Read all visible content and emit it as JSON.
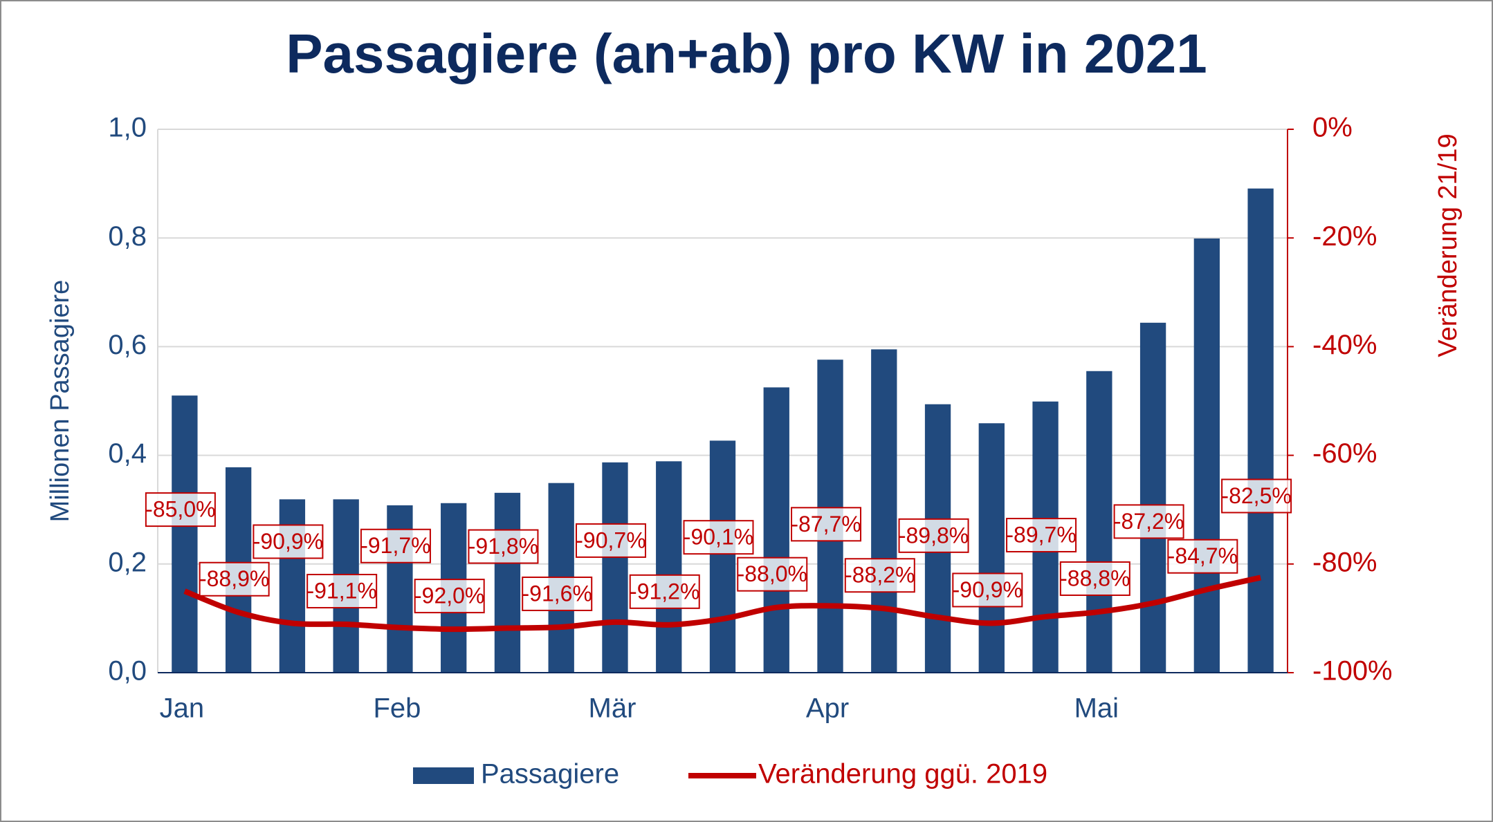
{
  "chart_data": {
    "type": "bar-line",
    "title": "Passagiere (an+ab) pro KW in 2021",
    "y_label": "Millionen Passagiere",
    "y2_label": "Veränderung 21/19",
    "categories": [
      "Jan",
      null,
      null,
      null,
      "Feb",
      null,
      null,
      null,
      "Mär",
      null,
      null,
      null,
      "Apr",
      null,
      null,
      null,
      null,
      "Mai",
      null,
      null,
      null
    ],
    "series": [
      {
        "name": "Passagiere",
        "type": "bar",
        "color": "#214a7e",
        "values": [
          0.51,
          0.378,
          0.319,
          0.319,
          0.308,
          0.312,
          0.331,
          0.349,
          0.387,
          0.389,
          0.427,
          0.525,
          0.576,
          0.595,
          0.494,
          0.459,
          0.499,
          0.555,
          0.644,
          0.799,
          0.891
        ]
      },
      {
        "name": "Veränderung ggü. 2019",
        "type": "line",
        "axis": "y2",
        "color": "#c00000",
        "values": [
          -85.0,
          -88.9,
          -90.9,
          -91.1,
          -91.7,
          -92.0,
          -91.8,
          -91.6,
          -90.7,
          -91.2,
          -90.1,
          -88.0,
          -87.7,
          -88.2,
          -89.8,
          -90.9,
          -89.7,
          -88.8,
          -87.2,
          -84.7,
          -82.5
        ],
        "value_labels": [
          "-85,0%",
          "-88,9%",
          "-90,9%",
          "-91,1%",
          "-91,7%",
          "-92,0%",
          "-91,8%",
          "-91,6%",
          "-90,7%",
          "-91,2%",
          "-90,1%",
          "-88,0%",
          "-87,7%",
          "-88,2%",
          "-89,8%",
          "-90,9%",
          "-89,7%",
          "-88,8%",
          "-87,2%",
          "-84,7%",
          "-82,5%"
        ]
      }
    ],
    "ylim": [
      0,
      1
    ],
    "yticks": [
      {
        "value": 0,
        "label": "0,0"
      },
      {
        "value": 0.2,
        "label": "0,2"
      },
      {
        "value": 0.4,
        "label": "0,4"
      },
      {
        "value": 0.6,
        "label": "0,6"
      },
      {
        "value": 0.8,
        "label": "0,8"
      },
      {
        "value": 1,
        "label": "1,0"
      }
    ],
    "y2lim": [
      -100,
      0
    ],
    "y2ticks": [
      {
        "value": -100,
        "label": "-100%"
      },
      {
        "value": -80,
        "label": "-80%"
      },
      {
        "value": -60,
        "label": "-60%"
      },
      {
        "value": -40,
        "label": "-40%"
      },
      {
        "value": -20,
        "label": "-20%"
      },
      {
        "value": 0,
        "label": "0%"
      }
    ],
    "grid": true,
    "legend": "bottom"
  }
}
